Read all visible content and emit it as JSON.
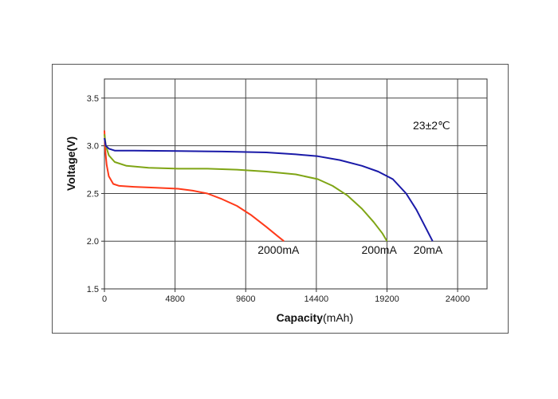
{
  "chart_data": {
    "type": "line",
    "xlabel": "Capacity",
    "xlabel_unit": "(mAh)",
    "ylabel": "Voltage(V)",
    "xlim": [
      0,
      26000
    ],
    "ylim": [
      1.5,
      3.7
    ],
    "x_ticks": [
      "0",
      "4800",
      "9600",
      "14400",
      "19200",
      "24000"
    ],
    "x_tick_values": [
      0,
      4800,
      9600,
      14400,
      19200,
      24000
    ],
    "y_ticks": [
      "1.5",
      "2.0",
      "2.5",
      "3.0",
      "3.5"
    ],
    "y_tick_values": [
      1.5,
      2.0,
      2.5,
      3.0,
      3.5
    ],
    "grid": true,
    "annotation": "23±2℃",
    "series": [
      {
        "name": "2000mA",
        "color": "#ff3a1a",
        "points": [
          [
            0,
            3.16
          ],
          [
            60,
            2.95
          ],
          [
            150,
            2.8
          ],
          [
            300,
            2.68
          ],
          [
            600,
            2.6
          ],
          [
            1000,
            2.58
          ],
          [
            2000,
            2.57
          ],
          [
            3500,
            2.56
          ],
          [
            5000,
            2.55
          ],
          [
            6000,
            2.53
          ],
          [
            7000,
            2.5
          ],
          [
            8000,
            2.44
          ],
          [
            9000,
            2.37
          ],
          [
            10000,
            2.27
          ],
          [
            11000,
            2.15
          ],
          [
            11800,
            2.05
          ],
          [
            12200,
            2.0
          ]
        ]
      },
      {
        "name": "200mA",
        "color": "#7fa515",
        "points": [
          [
            0,
            3.12
          ],
          [
            100,
            3.0
          ],
          [
            300,
            2.9
          ],
          [
            700,
            2.83
          ],
          [
            1500,
            2.79
          ],
          [
            3000,
            2.77
          ],
          [
            5000,
            2.76
          ],
          [
            7000,
            2.76
          ],
          [
            9000,
            2.75
          ],
          [
            11000,
            2.73
          ],
          [
            13000,
            2.7
          ],
          [
            14500,
            2.65
          ],
          [
            15500,
            2.58
          ],
          [
            16500,
            2.48
          ],
          [
            17500,
            2.34
          ],
          [
            18300,
            2.2
          ],
          [
            18900,
            2.08
          ],
          [
            19200,
            2.0
          ]
        ]
      },
      {
        "name": "20mA",
        "color": "#1a1aa8",
        "points": [
          [
            0,
            3.08
          ],
          [
            100,
            3.0
          ],
          [
            300,
            2.97
          ],
          [
            700,
            2.95
          ],
          [
            2000,
            2.95
          ],
          [
            5000,
            2.945
          ],
          [
            8000,
            2.94
          ],
          [
            11000,
            2.93
          ],
          [
            13000,
            2.91
          ],
          [
            14500,
            2.89
          ],
          [
            16000,
            2.85
          ],
          [
            17500,
            2.79
          ],
          [
            18600,
            2.73
          ],
          [
            19600,
            2.65
          ],
          [
            20500,
            2.5
          ],
          [
            21200,
            2.33
          ],
          [
            21800,
            2.15
          ],
          [
            22300,
            2.0
          ]
        ]
      }
    ]
  }
}
